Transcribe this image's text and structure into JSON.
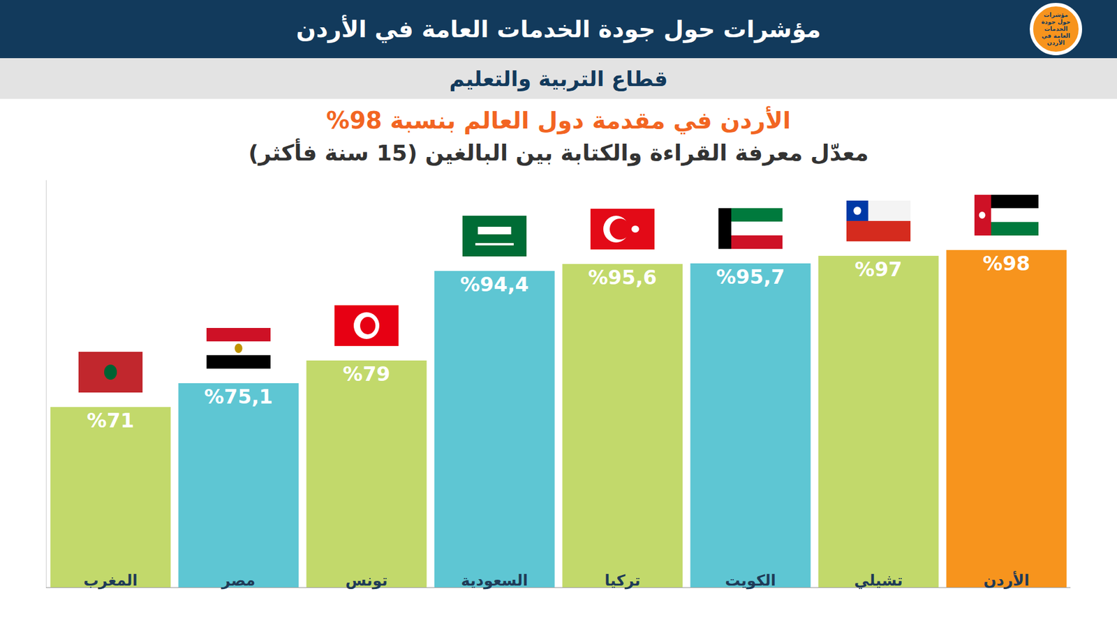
{
  "header": {
    "title": "مؤشرات حول جودة الخدمات العامة في الأردن",
    "section": "قطاع التربية والتعليم",
    "logo_text": "مؤشرات حول جودة الخدمات العامة في الأردن"
  },
  "chart_data": {
    "type": "bar",
    "title": "الأردن في مقدمة دول العالم بنسبة 98%",
    "subtitle": "معدّل معرفة القراءة والكتابة بين البالغين (15 سنة فأكثر)",
    "categories": [
      "المغرب",
      "مصر",
      "تونس",
      "السعودية",
      "تركيا",
      "الكويت",
      "تشيلي",
      "الأردن"
    ],
    "values": [
      71,
      75.1,
      79,
      94.4,
      95.6,
      95.7,
      97,
      98
    ],
    "value_labels": [
      "%71",
      "%75,1",
      "%79",
      "%94,4",
      "%95,6",
      "%95,7",
      "%97",
      "%98"
    ],
    "colors": [
      "#c2d96b",
      "#5ec6d3",
      "#c2d96b",
      "#5ec6d3",
      "#c2d96b",
      "#5ec6d3",
      "#c2d96b",
      "#f7941d"
    ],
    "ylim": [
      40,
      110
    ],
    "tick_labels": "x",
    "data_labels": true,
    "grid": false
  }
}
